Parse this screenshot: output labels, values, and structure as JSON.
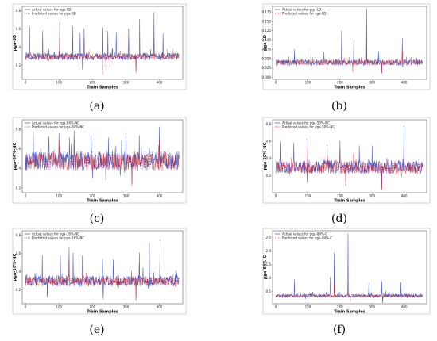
{
  "chart_data": [
    {
      "type": "line",
      "panel_label": "(a)",
      "xlabel": "Train Samples",
      "ylabel": "pga-SD",
      "xticks": [
        "0",
        "100",
        "200",
        "300",
        "400"
      ],
      "xlim": [
        -10,
        470
      ],
      "yticks": [
        "0.2",
        "0.4",
        "0.6",
        "0.8"
      ],
      "ylim": [
        0.05,
        0.85
      ],
      "legend": "top-left",
      "grid": false,
      "series": [
        {
          "name": "Actual values for pga-SD",
          "color": "#3b50c8",
          "style": "solid",
          "base": 0.3,
          "amp": 0.04,
          "peaks": [
            [
              12,
              0.63
            ],
            [
              51,
              0.58
            ],
            [
              102,
              0.68
            ],
            [
              141,
              0.63
            ],
            [
              163,
              0.56
            ],
            [
              175,
              0.61
            ],
            [
              231,
              0.62
            ],
            [
              246,
              0.58
            ],
            [
              271,
              0.57
            ],
            [
              308,
              0.61
            ],
            [
              341,
              0.71
            ],
            [
              384,
              0.79
            ],
            [
              411,
              0.55
            ]
          ],
          "dips": [
            [
              170,
              0.16
            ],
            [
              240,
              0.18
            ],
            [
              330,
              0.14
            ]
          ]
        },
        {
          "name": "Predicted values for pga-SD",
          "color": "#d42020",
          "style": "dashed",
          "base": 0.3,
          "amp": 0.035,
          "peaks": [
            [
              102,
              0.5
            ],
            [
              175,
              0.52
            ],
            [
              308,
              0.48
            ],
            [
              384,
              0.5
            ]
          ],
          "dips": [
            [
              230,
              0.1
            ],
            [
              252,
              0.17
            ],
            [
              330,
              0.12
            ]
          ]
        }
      ]
    },
    {
      "type": "line",
      "panel_label": "(b)",
      "xlabel": "Train Samples",
      "ylabel": "pga-LD",
      "xticks": [
        "0",
        "100",
        "200",
        "300",
        "400"
      ],
      "xlim": [
        -10,
        470
      ],
      "yticks": [
        "0.000",
        "0.025",
        "0.050",
        "0.075",
        "0.100",
        "0.125",
        "0.150",
        "0.175"
      ],
      "ylim": [
        -0.005,
        0.19
      ],
      "legend": "top-left",
      "grid": false,
      "series": [
        {
          "name": "Actual values for pga-LD",
          "color": "#3b50c8",
          "style": "solid",
          "base": 0.04,
          "amp": 0.008,
          "peaks": [
            [
              58,
              0.075
            ],
            [
              110,
              0.072
            ],
            [
              150,
              0.068
            ],
            [
              205,
              0.125
            ],
            [
              243,
              0.1
            ],
            [
              283,
              0.185
            ],
            [
              320,
              0.07
            ],
            [
              394,
              0.105
            ]
          ],
          "dips": [
            [
              330,
              0.012
            ]
          ]
        },
        {
          "name": "Predicted values for pga-LD",
          "color": "#d42020",
          "style": "dashed",
          "base": 0.04,
          "amp": 0.007,
          "peaks": [
            [
              205,
              0.08
            ],
            [
              283,
              0.078
            ],
            [
              394,
              0.075
            ]
          ],
          "dips": [
            [
              240,
              0.014
            ],
            [
              330,
              0.01
            ]
          ]
        }
      ]
    },
    {
      "type": "line",
      "panel_label": "(c)",
      "xlabel": "Train Samples",
      "ylabel": "pga-84%-NC",
      "xticks": [
        "0",
        "100",
        "200",
        "300",
        "400"
      ],
      "xlim": [
        -10,
        470
      ],
      "yticks": [
        "0.2",
        "0.4",
        "0.6",
        "0.8"
      ],
      "ylim": [
        0.15,
        0.9
      ],
      "legend": "top-left",
      "grid": false,
      "series": [
        {
          "name": "Actual values for pga-84%-NC",
          "color": "#3b50c8",
          "style": "solid",
          "base": 0.48,
          "amp": 0.1,
          "peaks": [
            [
              23,
              0.78
            ],
            [
              70,
              0.73
            ],
            [
              100,
              0.76
            ],
            [
              131,
              0.72
            ],
            [
              145,
              0.79
            ],
            [
              196,
              0.75
            ],
            [
              248,
              0.72
            ],
            [
              340,
              0.74
            ],
            [
              400,
              0.83
            ]
          ],
          "dips": [
            [
              200,
              0.3
            ],
            [
              240,
              0.28
            ],
            [
              318,
              0.24
            ]
          ]
        },
        {
          "name": "Predicted values for pga-84%-NC",
          "color": "#d42020",
          "style": "dashed",
          "base": 0.47,
          "amp": 0.09,
          "peaks": [
            [
              100,
              0.7
            ],
            [
              145,
              0.72
            ],
            [
              400,
              0.7
            ]
          ],
          "dips": [
            [
              240,
              0.25
            ],
            [
              318,
              0.22
            ]
          ]
        }
      ]
    },
    {
      "type": "line",
      "panel_label": "(d)",
      "xlabel": "Train Samples",
      "ylabel": "pga-50%-NC",
      "xticks": [
        "0",
        "100",
        "200",
        "300",
        "400"
      ],
      "xlim": [
        -10,
        470
      ],
      "yticks": [
        "0.2",
        "0.4",
        "0.6",
        "0.8"
      ],
      "ylim": [
        0.0,
        0.85
      ],
      "legend": "top-left",
      "grid": false,
      "series": [
        {
          "name": "Actual values for pga-50%-NC",
          "color": "#3b50c8",
          "style": "solid",
          "base": 0.3,
          "amp": 0.08,
          "peaks": [
            [
              16,
              0.6
            ],
            [
              56,
              0.58
            ],
            [
              98,
              0.63
            ],
            [
              160,
              0.56
            ],
            [
              200,
              0.61
            ],
            [
              260,
              0.55
            ],
            [
              300,
              0.55
            ],
            [
              399,
              0.78
            ]
          ],
          "dips": [
            [
              100,
              0.12
            ],
            [
              218,
              0.08
            ],
            [
              330,
              0.04
            ]
          ]
        },
        {
          "name": "Predicted values for pga-50%-NC",
          "color": "#d42020",
          "style": "dashed",
          "base": 0.29,
          "amp": 0.07,
          "peaks": [
            [
              98,
              0.55
            ],
            [
              200,
              0.52
            ],
            [
              399,
              0.55
            ]
          ],
          "dips": [
            [
              218,
              0.07
            ],
            [
              330,
              0.03
            ]
          ]
        }
      ]
    },
    {
      "type": "line",
      "panel_label": "(e)",
      "xlabel": "Train Samples",
      "ylabel": "pga-16%-NC",
      "xticks": [
        "0",
        "100",
        "200",
        "300",
        "400"
      ],
      "xlim": [
        -10,
        470
      ],
      "yticks": [
        "0.2",
        "0.4",
        "0.6",
        "0.8"
      ],
      "ylim": [
        0.05,
        0.85
      ],
      "legend": "top-left",
      "grid": false,
      "series": [
        {
          "name": "Actual values for pga-16%-NC",
          "color": "#3b50c8",
          "style": "solid",
          "base": 0.3,
          "amp": 0.06,
          "peaks": [
            [
              50,
              0.58
            ],
            [
              104,
              0.58
            ],
            [
              130,
              0.67
            ],
            [
              142,
              0.61
            ],
            [
              170,
              0.58
            ],
            [
              230,
              0.55
            ],
            [
              262,
              0.54
            ],
            [
              340,
              0.61
            ],
            [
              370,
              0.72
            ],
            [
              402,
              0.75
            ]
          ],
          "dips": [
            [
              65,
              0.14
            ],
            [
              232,
              0.12
            ],
            [
              330,
              0.1
            ]
          ]
        },
        {
          "name": "Predicted values for pga-16%-NC",
          "color": "#d42020",
          "style": "dashed",
          "base": 0.3,
          "amp": 0.05,
          "peaks": [
            [
              130,
              0.52
            ],
            [
              340,
              0.5
            ],
            [
              402,
              0.5
            ]
          ],
          "dips": [
            [
              65,
              0.12
            ],
            [
              232,
              0.1
            ],
            [
              330,
              0.08
            ]
          ]
        }
      ]
    },
    {
      "type": "line",
      "panel_label": "(f)",
      "xlabel": "Train Samples",
      "ylabel": "pga-84%-C",
      "xticks": [
        "0",
        "100",
        "200",
        "300",
        "400"
      ],
      "xlim": [
        -10,
        470
      ],
      "yticks": [
        "0.5",
        "1.0",
        "1.5",
        "2.0",
        "2.5"
      ],
      "ylim": [
        0.05,
        2.75
      ],
      "legend": "top-left",
      "grid": false,
      "series": [
        {
          "name": "Actual values for pga-84%-C",
          "color": "#3b50c8",
          "style": "solid",
          "base": 0.35,
          "amp": 0.07,
          "peaks": [
            [
              58,
              0.95
            ],
            [
              170,
              1.05
            ],
            [
              182,
              1.95
            ],
            [
              225,
              2.65
            ],
            [
              290,
              0.85
            ],
            [
              330,
              0.9
            ],
            [
              390,
              0.85
            ]
          ],
          "dips": [
            [
              333,
              0.1
            ]
          ]
        },
        {
          "name": "Predicted values for pga-84%-C",
          "color": "#d42020",
          "style": "dashed",
          "base": 0.34,
          "amp": 0.06,
          "peaks": [
            [
              182,
              0.8
            ],
            [
              225,
              0.85
            ]
          ],
          "dips": [
            [
              232,
              0.12
            ],
            [
              333,
              0.08
            ]
          ]
        }
      ]
    }
  ]
}
